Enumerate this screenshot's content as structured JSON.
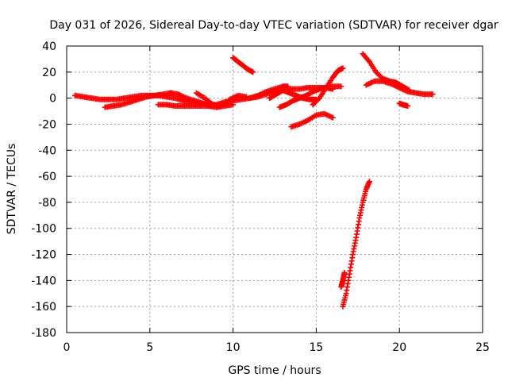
{
  "chart_data": {
    "type": "scatter",
    "title": "Day 031 of 2026, Sidereal Day-to-day VTEC variation (SDTVAR) for receiver dgar",
    "xlabel": "GPS time / hours",
    "ylabel": "SDTVAR / TECUs",
    "xlim": [
      0,
      25
    ],
    "ylim": [
      -180,
      40
    ],
    "xticks": [
      0,
      5,
      10,
      15,
      20,
      25
    ],
    "yticks": [
      -180,
      -160,
      -140,
      -120,
      -100,
      -80,
      -60,
      -40,
      -20,
      0,
      20,
      40
    ],
    "grid": true,
    "legend": "none",
    "marker": "plus",
    "color": "#ff0000",
    "series": [
      {
        "values": [
          [
            0.5,
            2
          ],
          [
            1.0,
            1
          ],
          [
            1.5,
            0
          ],
          [
            2.0,
            -1
          ],
          [
            2.5,
            -1
          ],
          [
            3.0,
            -1
          ],
          [
            3.5,
            0
          ],
          [
            4.0,
            1
          ],
          [
            4.5,
            2
          ],
          [
            5.0,
            2
          ],
          [
            5.5,
            2
          ],
          [
            6.0,
            1
          ],
          [
            6.5,
            0
          ],
          [
            7.0,
            -2
          ],
          [
            7.5,
            -3
          ],
          [
            8.0,
            -4
          ],
          [
            8.5,
            -5
          ],
          [
            9.0,
            -5
          ],
          [
            9.5,
            -3
          ],
          [
            10.0,
            -2
          ],
          [
            10.5,
            -1
          ],
          [
            11.0,
            0
          ],
          [
            11.5,
            1
          ],
          [
            12.0,
            3
          ],
          [
            12.5,
            5
          ],
          [
            13.0,
            6
          ],
          [
            13.5,
            7
          ],
          [
            14.0,
            7
          ],
          [
            14.5,
            8
          ],
          [
            15.0,
            8
          ],
          [
            15.5,
            8
          ],
          [
            16.0,
            9
          ],
          [
            16.5,
            9
          ]
        ]
      },
      {
        "values": [
          [
            2.3,
            -7
          ],
          [
            2.8,
            -6
          ],
          [
            3.3,
            -5
          ],
          [
            3.8,
            -3
          ],
          [
            4.3,
            -1
          ],
          [
            4.8,
            1
          ],
          [
            5.3,
            2
          ],
          [
            5.8,
            3
          ],
          [
            6.3,
            4
          ]
        ]
      },
      {
        "values": [
          [
            5.5,
            -5
          ],
          [
            6.0,
            -5
          ],
          [
            6.5,
            -6
          ],
          [
            7.0,
            -6
          ],
          [
            7.5,
            -6
          ],
          [
            8.0,
            -6
          ],
          [
            8.5,
            -6
          ],
          [
            9.0,
            -7
          ],
          [
            9.5,
            -6
          ],
          [
            10.0,
            -5
          ]
        ]
      },
      {
        "values": [
          [
            6.2,
            4
          ],
          [
            6.7,
            3
          ],
          [
            7.2,
            0
          ],
          [
            7.7,
            -2
          ],
          [
            8.2,
            -4
          ],
          [
            8.7,
            -6
          ]
        ]
      },
      {
        "values": [
          [
            7.8,
            4
          ],
          [
            8.3,
            0
          ],
          [
            8.8,
            -5
          ],
          [
            9.3,
            -6
          ],
          [
            9.8,
            -1
          ],
          [
            10.3,
            2
          ],
          [
            10.8,
            1
          ]
        ]
      },
      {
        "values": [
          [
            10.0,
            31
          ],
          [
            10.3,
            28
          ],
          [
            10.6,
            25
          ],
          [
            10.9,
            22
          ],
          [
            11.2,
            20
          ]
        ]
      },
      {
        "values": [
          [
            11.0,
            0
          ],
          [
            11.5,
            2
          ],
          [
            12.0,
            5
          ],
          [
            12.5,
            7
          ],
          [
            13.0,
            9
          ],
          [
            13.3,
            9
          ]
        ]
      },
      {
        "values": [
          [
            12.2,
            0
          ],
          [
            12.6,
            3
          ],
          [
            13.0,
            6
          ],
          [
            13.4,
            4
          ],
          [
            13.8,
            2
          ],
          [
            14.2,
            0
          ],
          [
            14.6,
            -1
          ],
          [
            15.0,
            -1
          ]
        ]
      },
      {
        "values": [
          [
            12.8,
            -7
          ],
          [
            13.2,
            -5
          ],
          [
            13.6,
            -2
          ],
          [
            14.0,
            0
          ],
          [
            14.4,
            2
          ],
          [
            14.8,
            5
          ],
          [
            15.2,
            7
          ],
          [
            15.6,
            8
          ],
          [
            16.0,
            7
          ]
        ]
      },
      {
        "values": [
          [
            13.5,
            -22
          ],
          [
            14.0,
            -20
          ],
          [
            14.5,
            -17
          ],
          [
            15.0,
            -13
          ],
          [
            15.5,
            -12
          ],
          [
            16.0,
            -15
          ]
        ]
      },
      {
        "values": [
          [
            14.8,
            -5
          ],
          [
            15.2,
            0
          ],
          [
            15.6,
            8
          ],
          [
            16.0,
            16
          ],
          [
            16.3,
            21
          ],
          [
            16.6,
            23
          ]
        ]
      },
      {
        "values": [
          [
            16.5,
            -145
          ],
          [
            16.6,
            -140
          ],
          [
            16.7,
            -134
          ]
        ]
      },
      {
        "values": [
          [
            16.6,
            -160
          ],
          [
            16.8,
            -150
          ],
          [
            17.0,
            -135
          ],
          [
            17.2,
            -120
          ],
          [
            17.4,
            -107
          ],
          [
            17.6,
            -92
          ],
          [
            17.8,
            -80
          ],
          [
            18.0,
            -70
          ],
          [
            18.2,
            -64
          ]
        ]
      },
      {
        "values": [
          [
            17.8,
            34
          ],
          [
            18.2,
            28
          ],
          [
            18.6,
            20
          ],
          [
            19.0,
            15
          ],
          [
            19.4,
            13
          ],
          [
            19.8,
            12
          ],
          [
            20.2,
            9
          ],
          [
            20.6,
            6
          ]
        ]
      },
      {
        "values": [
          [
            18.0,
            10
          ],
          [
            18.5,
            13
          ],
          [
            19.0,
            13
          ],
          [
            19.5,
            11
          ],
          [
            20.0,
            8
          ],
          [
            20.5,
            5
          ],
          [
            21.0,
            4
          ],
          [
            21.5,
            3
          ],
          [
            22.0,
            3
          ]
        ]
      },
      {
        "values": [
          [
            20.0,
            -4
          ],
          [
            20.2,
            -5
          ],
          [
            20.5,
            -6
          ]
        ]
      }
    ]
  }
}
